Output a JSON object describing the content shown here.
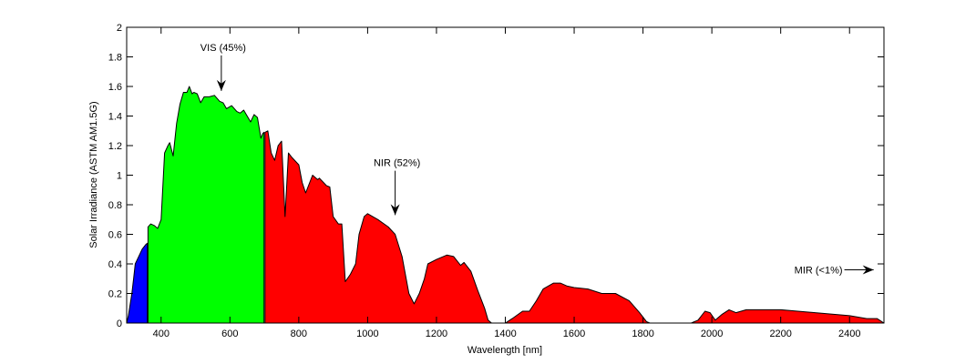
{
  "chart_data": {
    "type": "area",
    "title": "",
    "xlabel": "Wavelength [nm]",
    "ylabel": "Solar Irradiance (ASTM AM1.5G)",
    "xlim": [
      300,
      2500
    ],
    "ylim": [
      0,
      2
    ],
    "xticks": [
      400,
      600,
      800,
      1000,
      1200,
      1400,
      1600,
      1800,
      2000,
      2200,
      2400
    ],
    "yticks": [
      0,
      0.2,
      0.4,
      0.6,
      0.8,
      1,
      1.2,
      1.4,
      1.6,
      1.8,
      2
    ],
    "ytick_labels": [
      "0",
      "0.2",
      "0.4",
      "0.6",
      "0.8",
      "1",
      "1.2",
      "1.4",
      "1.6",
      "1.8",
      "2"
    ],
    "grid": false,
    "series": [
      {
        "color": "#0000ff",
        "points": [
          [
            300,
            0
          ],
          [
            305,
            0.05
          ],
          [
            315,
            0.2
          ],
          [
            320,
            0.3
          ],
          [
            325,
            0.4
          ],
          [
            335,
            0.45
          ],
          [
            345,
            0.5
          ],
          [
            355,
            0.53
          ],
          [
            360,
            0.54
          ]
        ]
      },
      {
        "color": "#00ff00",
        "points": [
          [
            362,
            0.65
          ],
          [
            370,
            0.67
          ],
          [
            380,
            0.66
          ],
          [
            390,
            0.64
          ],
          [
            400,
            0.7
          ],
          [
            410,
            1.15
          ],
          [
            420,
            1.2
          ],
          [
            425,
            1.22
          ],
          [
            435,
            1.13
          ],
          [
            445,
            1.35
          ],
          [
            455,
            1.48
          ],
          [
            465,
            1.56
          ],
          [
            475,
            1.56
          ],
          [
            482,
            1.6
          ],
          [
            490,
            1.55
          ],
          [
            495,
            1.56
          ],
          [
            505,
            1.55
          ],
          [
            515,
            1.49
          ],
          [
            525,
            1.53
          ],
          [
            540,
            1.53
          ],
          [
            555,
            1.54
          ],
          [
            570,
            1.5
          ],
          [
            580,
            1.49
          ],
          [
            590,
            1.45
          ],
          [
            605,
            1.47
          ],
          [
            620,
            1.43
          ],
          [
            630,
            1.42
          ],
          [
            640,
            1.44
          ],
          [
            650,
            1.4
          ],
          [
            660,
            1.36
          ],
          [
            670,
            1.41
          ],
          [
            680,
            1.39
          ],
          [
            690,
            1.25
          ],
          [
            695,
            1.28
          ],
          [
            699,
            1.29
          ]
        ]
      },
      {
        "color": "#ff0000",
        "points": [
          [
            702,
            1.29
          ],
          [
            710,
            1.3
          ],
          [
            720,
            1.15
          ],
          [
            730,
            1.1
          ],
          [
            740,
            1.2
          ],
          [
            750,
            1.23
          ],
          [
            760,
            0.72
          ],
          [
            770,
            1.15
          ],
          [
            780,
            1.12
          ],
          [
            800,
            1.07
          ],
          [
            810,
            0.95
          ],
          [
            820,
            0.88
          ],
          [
            840,
            1.0
          ],
          [
            855,
            0.97
          ],
          [
            860,
            0.98
          ],
          [
            880,
            0.93
          ],
          [
            890,
            0.92
          ],
          [
            900,
            0.72
          ],
          [
            915,
            0.67
          ],
          [
            925,
            0.67
          ],
          [
            935,
            0.28
          ],
          [
            950,
            0.33
          ],
          [
            965,
            0.4
          ],
          [
            975,
            0.6
          ],
          [
            990,
            0.72
          ],
          [
            1000,
            0.74
          ],
          [
            1030,
            0.7
          ],
          [
            1060,
            0.65
          ],
          [
            1080,
            0.6
          ],
          [
            1100,
            0.45
          ],
          [
            1120,
            0.2
          ],
          [
            1135,
            0.13
          ],
          [
            1150,
            0.2
          ],
          [
            1165,
            0.3
          ],
          [
            1175,
            0.4
          ],
          [
            1200,
            0.43
          ],
          [
            1230,
            0.46
          ],
          [
            1250,
            0.45
          ],
          [
            1270,
            0.39
          ],
          [
            1280,
            0.41
          ],
          [
            1300,
            0.35
          ],
          [
            1320,
            0.22
          ],
          [
            1340,
            0.1
          ],
          [
            1350,
            0.02
          ],
          [
            1360,
            0
          ],
          [
            1400,
            0
          ],
          [
            1420,
            0.03
          ],
          [
            1450,
            0.08
          ],
          [
            1470,
            0.08
          ],
          [
            1490,
            0.15
          ],
          [
            1510,
            0.23
          ],
          [
            1540,
            0.27
          ],
          [
            1560,
            0.27
          ],
          [
            1580,
            0.25
          ],
          [
            1600,
            0.24
          ],
          [
            1640,
            0.23
          ],
          [
            1680,
            0.2
          ],
          [
            1720,
            0.2
          ],
          [
            1760,
            0.15
          ],
          [
            1790,
            0.07
          ],
          [
            1810,
            0.01
          ],
          [
            1820,
            0
          ],
          [
            1940,
            0
          ],
          [
            1960,
            0.02
          ],
          [
            1980,
            0.08
          ],
          [
            1995,
            0.07
          ],
          [
            2010,
            0.02
          ],
          [
            2030,
            0.06
          ],
          [
            2050,
            0.09
          ],
          [
            2070,
            0.07
          ],
          [
            2100,
            0.09
          ],
          [
            2200,
            0.09
          ],
          [
            2300,
            0.07
          ],
          [
            2400,
            0.05
          ],
          [
            2450,
            0.03
          ],
          [
            2480,
            0.03
          ],
          [
            2500,
            0
          ]
        ]
      }
    ],
    "annotations": [
      {
        "text": "VIS (45%)",
        "arrow_from": [
          575,
          1.81
        ],
        "arrow_to": [
          575,
          1.57
        ],
        "direction": "down"
      },
      {
        "text": "NIR (52%)",
        "arrow_from": [
          1080,
          1.03
        ],
        "arrow_to": [
          1080,
          0.73
        ],
        "direction": "down"
      },
      {
        "text": "MIR (<1%)",
        "arrow_from": [
          2385,
          0.36
        ],
        "arrow_to": [
          2470,
          0.36
        ],
        "direction": "right"
      }
    ]
  }
}
